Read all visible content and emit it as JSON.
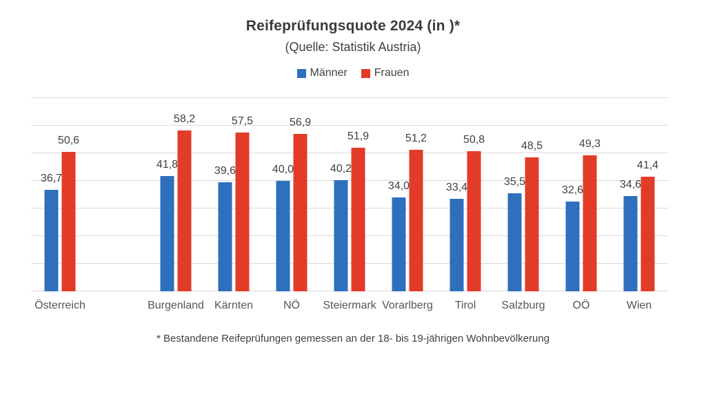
{
  "title": "Reifeprüfungsquote 2024 (in )*",
  "subtitle": "(Quelle: Statistik Austria)",
  "legend": [
    {
      "label": "Männer",
      "color": "#2e6fbe"
    },
    {
      "label": "Frauen",
      "color": "#e23b28"
    }
  ],
  "footnote": "* Bestandene Reifeprüfungen gemessen an der 18- bis 19-jährigen Wohnbevölkerung",
  "colors": {
    "maenner_blue": "#2e6fbe",
    "frauen_red": "#e23b28",
    "gridline": "#d9d9d9",
    "value_text": "#404040",
    "category_text": "#555555"
  },
  "chart_data": {
    "type": "bar",
    "title": "Reifeprüfungsquote 2024 (in )*",
    "subtitle": "(Quelle: Statistik Austria)",
    "categories": [
      "Österreich",
      "Burgenland",
      "Kärnten",
      "NÖ",
      "Steiermark",
      "Vorarlberg",
      "Tirol",
      "Salzburg",
      "OÖ",
      "Wien"
    ],
    "series": [
      {
        "name": "Männer",
        "color": "#2e6fbe",
        "values": [
          36.7,
          41.8,
          39.6,
          40.0,
          40.2,
          34.0,
          33.4,
          35.5,
          32.6,
          34.6
        ]
      },
      {
        "name": "Frauen",
        "color": "#e23b28",
        "values": [
          50.6,
          58.2,
          57.5,
          56.9,
          51.9,
          51.2,
          50.8,
          48.5,
          49.3,
          41.4
        ]
      }
    ],
    "xlabel": "",
    "ylabel": "",
    "ylim": [
      0,
      70
    ],
    "gridline_step": 10,
    "grid": true,
    "y_tick_labels_visible": false,
    "legend_position": "top",
    "value_labels": "outside-end",
    "decimal_separator": ",",
    "spacer_after_category_index": 0
  }
}
